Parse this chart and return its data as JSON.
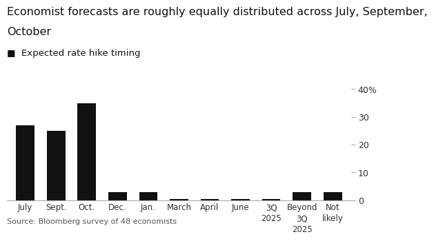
{
  "title_line1": "Economist forecasts are roughly equally distributed across July, September,",
  "title_line2": "October",
  "legend_label": "■  Expected rate hike timing",
  "categories": [
    "July",
    "Sept.",
    "Oct.",
    "Dec.",
    "Jan.",
    "March",
    "April",
    "June",
    "3Q\n2025",
    "Beyond\n3Q\n2025",
    "Not\nlikely"
  ],
  "values": [
    27,
    25,
    35,
    3,
    3,
    0.5,
    0.5,
    0.5,
    0.5,
    3,
    3
  ],
  "bar_color": "#111111",
  "background_color": "#ffffff",
  "ylim": [
    0,
    40
  ],
  "yticks": [
    0,
    10,
    20,
    30,
    40
  ],
  "ytick_labels": [
    "0",
    "10",
    "20",
    "30",
    "40%"
  ],
  "source": "Source: Bloomberg survey of 48 economists",
  "title_fontsize": 11.5,
  "legend_fontsize": 9.5,
  "tick_fontsize": 9,
  "source_fontsize": 8
}
